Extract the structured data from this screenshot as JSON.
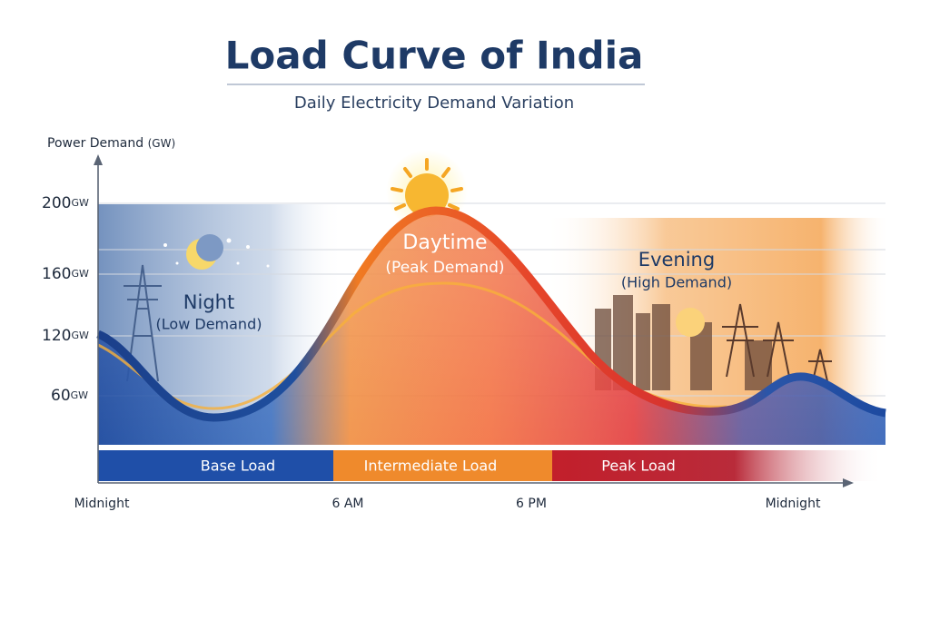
{
  "header": {
    "title": "Load Curve of India",
    "subtitle": "Daily Electricity Demand Variation"
  },
  "y_axis": {
    "label": "Power Demand",
    "unit": "(GW)",
    "ticks": [
      {
        "number": "200",
        "unit": "GW"
      },
      {
        "number": "160",
        "unit": "GW"
      },
      {
        "number": "120",
        "unit": "GW"
      },
      {
        "number": "60",
        "unit": "GW"
      }
    ]
  },
  "x_axis": {
    "labels": [
      "Midnight",
      "6 AM",
      "6 PM",
      "Midnight"
    ]
  },
  "bands": [
    "Base Load",
    "Intermediate Load",
    "Peak Load"
  ],
  "annotations": [
    {
      "title": "Night",
      "subtitle": "(Low Demand)"
    },
    {
      "title": "Daytime",
      "subtitle": "(Peak Demand)"
    },
    {
      "title": "Evening",
      "subtitle": "(High Demand)"
    }
  ]
}
